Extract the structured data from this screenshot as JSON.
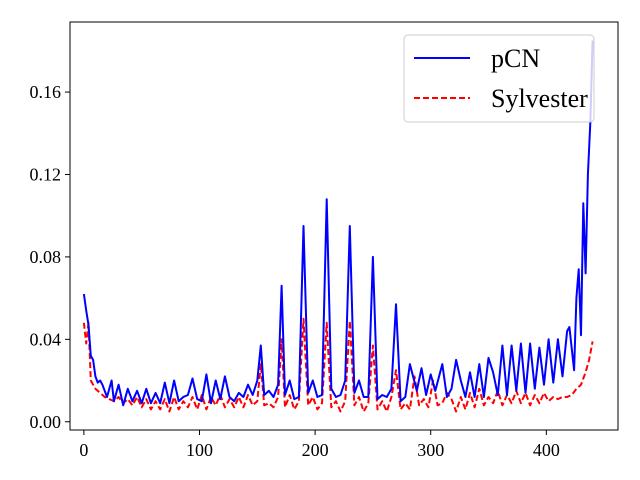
{
  "chart_data": {
    "type": "line",
    "title": "",
    "xlabel": "",
    "ylabel": "",
    "xlim": [
      -12,
      462
    ],
    "ylim": [
      -0.004,
      0.194
    ],
    "xticks": [
      0,
      100,
      200,
      300,
      400
    ],
    "xtick_labels": [
      "0",
      "100",
      "200",
      "300",
      "400"
    ],
    "yticks": [
      0.0,
      0.04,
      0.08,
      0.12,
      0.16
    ],
    "ytick_labels": [
      "0.00",
      "0.04",
      "0.08",
      "0.12",
      "0.16"
    ],
    "grid": false,
    "legend_position": "top-right",
    "series": [
      {
        "name": "pCN",
        "color": "#0000ff",
        "dash": "solid",
        "x": [
          0,
          2,
          4,
          6,
          8,
          10,
          12,
          14,
          16,
          18,
          20,
          24,
          26,
          30,
          34,
          38,
          42,
          46,
          50,
          54,
          58,
          62,
          66,
          70,
          74,
          78,
          82,
          86,
          90,
          94,
          98,
          102,
          106,
          110,
          114,
          118,
          122,
          126,
          130,
          134,
          138,
          142,
          146,
          150,
          153,
          156,
          160,
          164,
          168,
          171,
          174,
          178,
          182,
          186,
          190,
          194,
          198,
          202,
          206,
          210,
          214,
          218,
          222,
          226,
          230,
          234,
          238,
          242,
          246,
          250,
          254,
          258,
          262,
          266,
          270,
          274,
          278,
          282,
          288,
          292,
          296,
          300,
          304,
          310,
          314,
          318,
          322,
          326,
          330,
          334,
          338,
          342,
          346,
          350,
          354,
          358,
          362,
          366,
          370,
          374,
          378,
          382,
          386,
          390,
          394,
          398,
          402,
          406,
          410,
          414,
          418,
          420,
          424,
          426,
          428,
          430,
          432,
          434,
          436,
          438,
          440
        ],
        "y": [
          0.062,
          0.054,
          0.047,
          0.032,
          0.03,
          0.022,
          0.019,
          0.02,
          0.018,
          0.015,
          0.012,
          0.02,
          0.01,
          0.018,
          0.008,
          0.016,
          0.01,
          0.015,
          0.009,
          0.016,
          0.009,
          0.014,
          0.009,
          0.019,
          0.009,
          0.02,
          0.01,
          0.012,
          0.013,
          0.021,
          0.011,
          0.01,
          0.023,
          0.009,
          0.02,
          0.011,
          0.022,
          0.012,
          0.01,
          0.014,
          0.012,
          0.018,
          0.013,
          0.02,
          0.037,
          0.013,
          0.015,
          0.012,
          0.018,
          0.066,
          0.013,
          0.02,
          0.011,
          0.012,
          0.095,
          0.014,
          0.02,
          0.012,
          0.013,
          0.108,
          0.016,
          0.012,
          0.013,
          0.02,
          0.095,
          0.014,
          0.02,
          0.012,
          0.012,
          0.08,
          0.011,
          0.013,
          0.012,
          0.016,
          0.057,
          0.01,
          0.012,
          0.028,
          0.015,
          0.026,
          0.013,
          0.023,
          0.015,
          0.028,
          0.012,
          0.016,
          0.03,
          0.02,
          0.012,
          0.024,
          0.012,
          0.028,
          0.012,
          0.031,
          0.024,
          0.013,
          0.037,
          0.013,
          0.037,
          0.015,
          0.038,
          0.014,
          0.038,
          0.016,
          0.036,
          0.018,
          0.04,
          0.019,
          0.04,
          0.022,
          0.044,
          0.046,
          0.025,
          0.06,
          0.074,
          0.042,
          0.106,
          0.072,
          0.12,
          0.145,
          0.185
        ]
      },
      {
        "name": "Sylvester",
        "color": "#ff0000",
        "dash": "dashed",
        "x": [
          0,
          2,
          4,
          6,
          8,
          10,
          14,
          18,
          22,
          26,
          30,
          34,
          38,
          42,
          46,
          50,
          54,
          58,
          62,
          66,
          70,
          74,
          78,
          82,
          86,
          90,
          94,
          98,
          102,
          106,
          110,
          114,
          118,
          122,
          126,
          130,
          134,
          138,
          142,
          146,
          150,
          153,
          156,
          160,
          164,
          168,
          171,
          174,
          178,
          182,
          186,
          190,
          194,
          198,
          202,
          206,
          210,
          214,
          218,
          222,
          226,
          230,
          234,
          238,
          242,
          246,
          250,
          254,
          258,
          262,
          266,
          270,
          274,
          278,
          282,
          286,
          290,
          294,
          298,
          302,
          306,
          310,
          314,
          318,
          322,
          326,
          330,
          334,
          338,
          342,
          346,
          350,
          354,
          358,
          362,
          366,
          370,
          374,
          378,
          382,
          386,
          390,
          394,
          398,
          402,
          406,
          410,
          414,
          418,
          422,
          426,
          430,
          434,
          437,
          440
        ],
        "y": [
          0.048,
          0.038,
          0.048,
          0.02,
          0.018,
          0.016,
          0.014,
          0.012,
          0.011,
          0.01,
          0.012,
          0.009,
          0.011,
          0.008,
          0.012,
          0.007,
          0.011,
          0.006,
          0.01,
          0.006,
          0.011,
          0.005,
          0.012,
          0.006,
          0.01,
          0.007,
          0.012,
          0.006,
          0.013,
          0.006,
          0.012,
          0.008,
          0.013,
          0.007,
          0.011,
          0.007,
          0.012,
          0.007,
          0.013,
          0.008,
          0.01,
          0.028,
          0.008,
          0.009,
          0.007,
          0.012,
          0.04,
          0.007,
          0.013,
          0.006,
          0.01,
          0.05,
          0.008,
          0.012,
          0.006,
          0.009,
          0.048,
          0.007,
          0.01,
          0.005,
          0.01,
          0.049,
          0.008,
          0.012,
          0.005,
          0.009,
          0.037,
          0.006,
          0.01,
          0.005,
          0.012,
          0.025,
          0.006,
          0.009,
          0.006,
          0.022,
          0.008,
          0.011,
          0.007,
          0.02,
          0.008,
          0.009,
          0.014,
          0.011,
          0.005,
          0.012,
          0.006,
          0.014,
          0.007,
          0.016,
          0.008,
          0.012,
          0.009,
          0.015,
          0.008,
          0.013,
          0.009,
          0.015,
          0.009,
          0.014,
          0.008,
          0.013,
          0.009,
          0.014,
          0.01,
          0.012,
          0.011,
          0.012,
          0.012,
          0.013,
          0.016,
          0.018,
          0.024,
          0.03,
          0.039
        ]
      }
    ]
  }
}
